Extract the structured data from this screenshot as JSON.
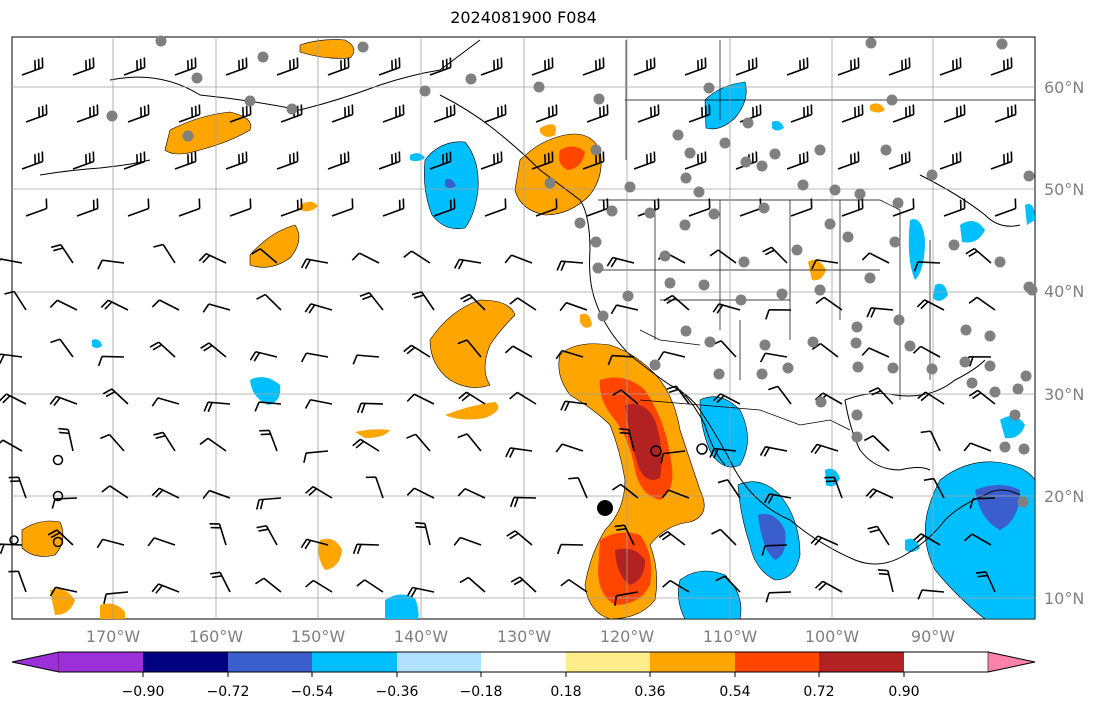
{
  "title": "2024081900 F084",
  "lat_labels": [
    "60°N",
    "50°N",
    "40°N",
    "30°N",
    "20°N",
    "10°N"
  ],
  "lon_labels": [
    "170°W",
    "160°W",
    "150°W",
    "140°W",
    "130°W",
    "120°W",
    "110°W",
    "100°W",
    "90°W"
  ],
  "colorbar": {
    "ticks": [
      "−0.90",
      "−0.72",
      "−0.54",
      "−0.36",
      "−0.18",
      "0.18",
      "0.36",
      "0.54",
      "0.72",
      "0.90"
    ],
    "colors": [
      "#9b30d9",
      "#000080",
      "#3a5fcd",
      "#00bfff",
      "#b0e2ff",
      "#ffffff",
      "#ffec8b",
      "#ffa500",
      "#ff4500",
      "#b22222",
      "#ff82ab"
    ]
  },
  "colors": {
    "grid": "#a0a0a0",
    "land": "#000000"
  }
}
